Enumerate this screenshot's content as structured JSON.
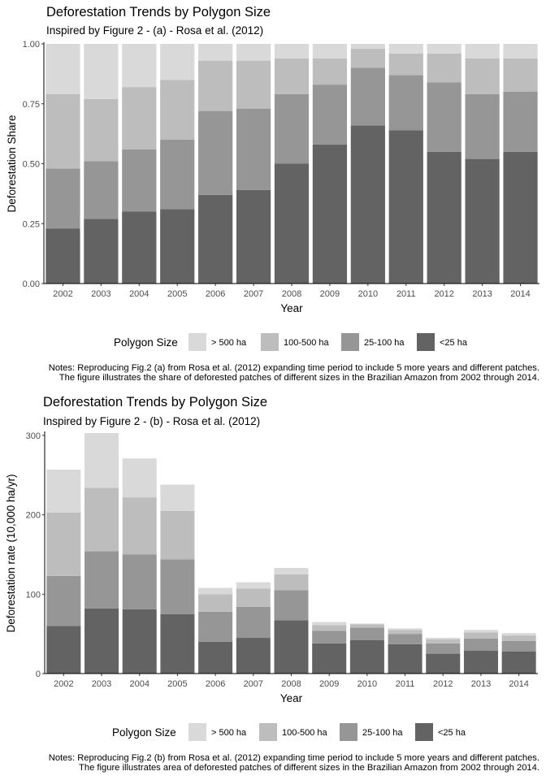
{
  "legend": {
    "title": "Polygon Size",
    "items": [
      {
        "label": "> 500 ha",
        "color": "#d9d9d9"
      },
      {
        "label": "100-500 ha",
        "color": "#bdbdbd"
      },
      {
        "label": "25-100 ha",
        "color": "#969696"
      },
      {
        "label": "<25 ha",
        "color": "#636363"
      }
    ]
  },
  "chart_data": [
    {
      "type": "bar",
      "stacked": true,
      "title": "Deforestation Trends by Polygon Size",
      "subtitle": "Inspired by Figure 2 - (a) - Rosa et al. (2012)",
      "xlabel": "Year",
      "ylabel": "Deforestation Share",
      "ylim": [
        0,
        1
      ],
      "yticks": [
        "0.00",
        "0.25",
        "0.50",
        "0.75",
        "1.00"
      ],
      "ytick_values": [
        0,
        0.25,
        0.5,
        0.75,
        1.0
      ],
      "grid": false,
      "legend_position": "bottom",
      "categories": [
        "2002",
        "2003",
        "2004",
        "2005",
        "2006",
        "2007",
        "2008",
        "2009",
        "2010",
        "2011",
        "2012",
        "2013",
        "2014"
      ],
      "series": [
        {
          "name": "<25 ha",
          "values": [
            0.23,
            0.27,
            0.3,
            0.31,
            0.37,
            0.39,
            0.5,
            0.58,
            0.66,
            0.64,
            0.55,
            0.52,
            0.55
          ]
        },
        {
          "name": "25-100 ha",
          "values": [
            0.25,
            0.24,
            0.26,
            0.29,
            0.35,
            0.34,
            0.29,
            0.25,
            0.24,
            0.23,
            0.29,
            0.27,
            0.25
          ]
        },
        {
          "name": "100-500 ha",
          "values": [
            0.31,
            0.26,
            0.26,
            0.25,
            0.21,
            0.2,
            0.15,
            0.11,
            0.08,
            0.09,
            0.12,
            0.15,
            0.14
          ]
        },
        {
          "name": "> 500 ha",
          "values": [
            0.21,
            0.23,
            0.18,
            0.15,
            0.07,
            0.07,
            0.06,
            0.06,
            0.02,
            0.04,
            0.04,
            0.06,
            0.06
          ]
        }
      ],
      "note_lines": [
        "Notes: Reproducing Fig.2 (a) from Rosa et al. (2012) expanding time period to include 5 more years and different patches.",
        "The figure illustrates the share of deforested patches of different sizes in the Brazilian Amazon from 2002 through 2014."
      ]
    },
    {
      "type": "bar",
      "stacked": true,
      "title": "Deforestation Trends by Polygon Size",
      "subtitle": "Inspired by Figure 2 - (b) - Rosa et al. (2012)",
      "xlabel": "Year",
      "ylabel": "Deforestation rate (10,000 ha/yr)",
      "ylim": [
        0,
        303
      ],
      "yticks": [
        "0",
        "100",
        "200",
        "300"
      ],
      "ytick_values": [
        0,
        100,
        200,
        300
      ],
      "grid": false,
      "legend_position": "bottom",
      "categories": [
        "2002",
        "2003",
        "2004",
        "2005",
        "2006",
        "2007",
        "2008",
        "2009",
        "2010",
        "2011",
        "2012",
        "2013",
        "2014"
      ],
      "series": [
        {
          "name": "<25 ha",
          "values": [
            60,
            82,
            81,
            75,
            40,
            45,
            67,
            38,
            42,
            37,
            25,
            29,
            28
          ]
        },
        {
          "name": "25-100 ha",
          "values": [
            63,
            72,
            69,
            69,
            38,
            39,
            38,
            16,
            16,
            13,
            13,
            15,
            13
          ]
        },
        {
          "name": "100-500 ha",
          "values": [
            80,
            80,
            72,
            61,
            22,
            23,
            20,
            7,
            4,
            5,
            5,
            8,
            7
          ]
        },
        {
          "name": "> 500 ha",
          "values": [
            54,
            69,
            49,
            33,
            8,
            8,
            8,
            4,
            1,
            2,
            2,
            3,
            3
          ]
        }
      ],
      "note_lines": [
        "Notes: Reproducing Fig.2 (b) from Rosa et al. (2012) expanding time period to include 5 more years and different patches.",
        "The figure illustrates area of deforested patches of different sizes in the Brazilian Amazon from 2002 through 2014."
      ]
    }
  ]
}
